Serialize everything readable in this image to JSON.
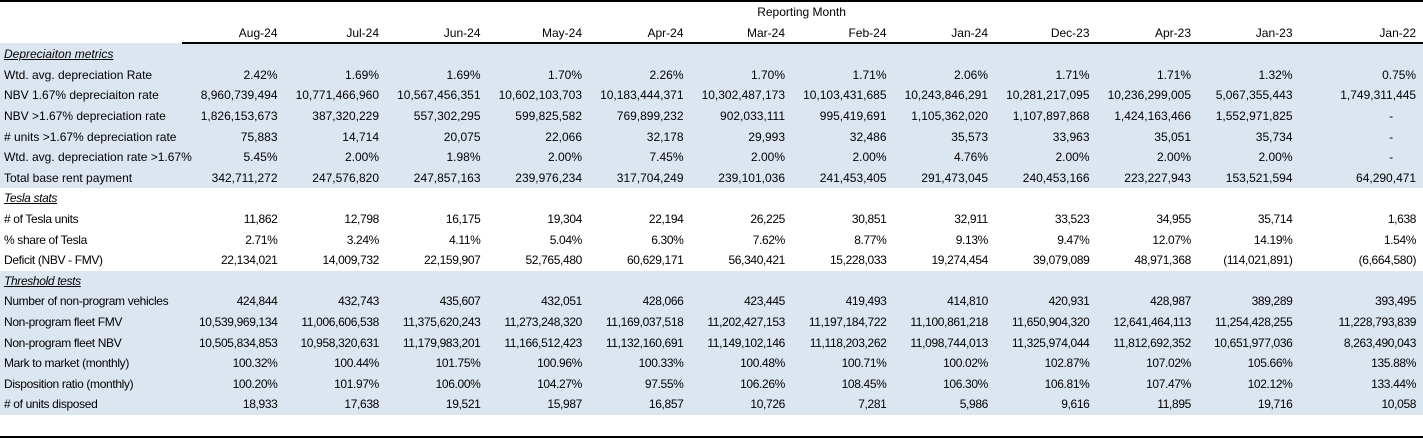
{
  "header": {
    "group_label": "Reporting Month",
    "months": [
      "Aug-24",
      "Jul-24",
      "Jun-24",
      "May-24",
      "Apr-24",
      "Mar-24",
      "Feb-24",
      "Jan-24",
      "Dec-23",
      "Apr-23",
      "Jan-23",
      "Jan-22"
    ]
  },
  "colors": {
    "section_fill": "#dce6f1",
    "border": "#000000"
  },
  "sections": [
    {
      "title": "Depreciaiton metrics",
      "shaded": true,
      "rows": [
        {
          "label": "Wtd. avg. depreciation Rate",
          "values": [
            "2.42%",
            "1.69%",
            "1.69%",
            "1.70%",
            "2.26%",
            "1.70%",
            "1.71%",
            "2.06%",
            "1.71%",
            "1.71%",
            "1.32%",
            "0.75%"
          ]
        },
        {
          "label": "NBV 1.67% depreciaiton rate",
          "values": [
            "8,960,739,494",
            "10,771,466,960",
            "10,567,456,351",
            "10,602,103,703",
            "10,183,444,371",
            "10,302,487,173",
            "10,103,431,685",
            "10,243,846,291",
            "10,281,217,095",
            "10,236,299,005",
            "5,067,355,443",
            "1,749,311,445"
          ]
        },
        {
          "label": "NBV >1.67% depreciation rate",
          "values": [
            "1,826,153,673",
            "387,320,229",
            "557,302,295",
            "599,825,582",
            "769,899,232",
            "902,033,111",
            "995,419,691",
            "1,105,362,020",
            "1,107,897,868",
            "1,424,163,466",
            "1,552,971,825",
            "-"
          ]
        },
        {
          "label": "# units >1.67% depreciation rate",
          "values": [
            "75,883",
            "14,714",
            "20,075",
            "22,066",
            "32,178",
            "29,993",
            "32,486",
            "35,573",
            "33,963",
            "35,051",
            "35,734",
            "-"
          ]
        },
        {
          "label": "Wtd. avg. depreciation rate >1.67%",
          "values": [
            "5.45%",
            "2.00%",
            "1.98%",
            "2.00%",
            "7.45%",
            "2.00%",
            "2.00%",
            "4.76%",
            "2.00%",
            "2.00%",
            "2.00%",
            "-"
          ]
        },
        {
          "label": "Total base rent payment",
          "values": [
            "342,711,272",
            "247,576,820",
            "247,857,163",
            "239,976,234",
            "317,704,249",
            "239,101,036",
            "241,453,405",
            "291,473,045",
            "240,453,166",
            "223,227,943",
            "153,521,594",
            "64,290,471"
          ]
        }
      ]
    },
    {
      "title": "Tesla stats",
      "shaded": false,
      "rows": [
        {
          "label": "# of Tesla units",
          "values": [
            "11,862",
            "12,798",
            "16,175",
            "19,304",
            "22,194",
            "26,225",
            "30,851",
            "32,911",
            "33,523",
            "34,955",
            "35,714",
            "1,638"
          ]
        },
        {
          "label": "% share of Tesla",
          "values": [
            "2.71%",
            "3.24%",
            "4.11%",
            "5.04%",
            "6.30%",
            "7.62%",
            "8.77%",
            "9.13%",
            "9.47%",
            "12.07%",
            "14.19%",
            "1.54%"
          ]
        },
        {
          "label": "Deficit (NBV - FMV)",
          "values": [
            "22,134,021",
            "14,009,732",
            "22,159,907",
            "52,765,480",
            "60,629,171",
            "56,340,421",
            "15,228,033",
            "19,274,454",
            "39,079,089",
            "48,971,368",
            "(114,021,891)",
            "(6,664,580)"
          ]
        }
      ]
    },
    {
      "title": "Threshold tests",
      "shaded": true,
      "rows": [
        {
          "label": "Number of non-program vehicles",
          "values": [
            "424,844",
            "432,743",
            "435,607",
            "432,051",
            "428,066",
            "423,445",
            "419,493",
            "414,810",
            "420,931",
            "428,987",
            "389,289",
            "393,495"
          ]
        },
        {
          "label": "Non-program fleet FMV",
          "values": [
            "10,539,969,134",
            "11,006,606,538",
            "11,375,620,243",
            "11,273,248,320",
            "11,169,037,518",
            "11,202,427,153",
            "11,197,184,722",
            "11,100,861,218",
            "11,650,904,320",
            "12,641,464,113",
            "11,254,428,255",
            "11,228,793,839"
          ]
        },
        {
          "label": "Non-program fleet NBV",
          "values": [
            "10,505,834,853",
            "10,958,320,631",
            "11,179,983,201",
            "11,166,512,423",
            "11,132,160,691",
            "11,149,102,146",
            "11,118,203,262",
            "11,098,744,013",
            "11,325,974,044",
            "11,812,692,352",
            "10,651,977,036",
            "8,263,490,043"
          ]
        },
        {
          "label": "Mark to market (monthly)",
          "values": [
            "100.32%",
            "100.44%",
            "101.75%",
            "100.96%",
            "100.33%",
            "100.48%",
            "100.71%",
            "100.02%",
            "102.87%",
            "107.02%",
            "105.66%",
            "135.88%"
          ]
        },
        {
          "label": "Disposition ratio (monthly)",
          "values": [
            "100.20%",
            "101.97%",
            "106.00%",
            "104.27%",
            "97.55%",
            "106.26%",
            "108.45%",
            "106.30%",
            "106.81%",
            "107.47%",
            "102.12%",
            "133.44%"
          ]
        },
        {
          "label": "# of units disposed",
          "values": [
            "18,933",
            "17,638",
            "19,521",
            "15,987",
            "16,857",
            "10,726",
            "7,281",
            "5,986",
            "9,616",
            "11,895",
            "19,716",
            "10,058"
          ]
        }
      ]
    }
  ]
}
